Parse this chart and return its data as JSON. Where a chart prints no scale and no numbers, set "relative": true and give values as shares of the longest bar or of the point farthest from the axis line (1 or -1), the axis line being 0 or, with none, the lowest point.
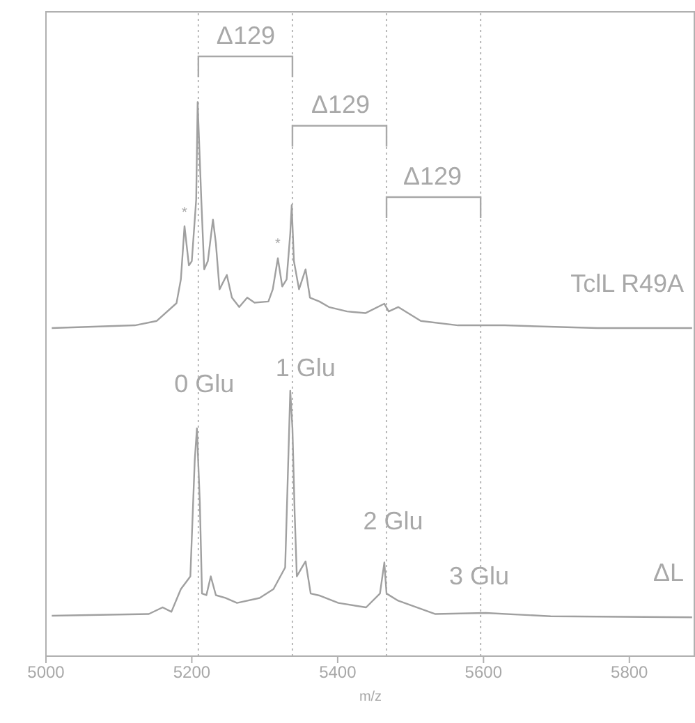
{
  "chart_data": {
    "type": "line",
    "relative": true,
    "xlabel": "m/z",
    "xlim": [
      5000,
      5890
    ],
    "xticks": [
      5000,
      5200,
      5400,
      5600,
      5800
    ],
    "grid": false,
    "legend": false,
    "marker": "none",
    "line_style": "solid",
    "series": [
      {
        "name": "TclL R49A",
        "color": "#a0a0a0",
        "x": [
          5008,
          5122,
          5152,
          5179,
          5185,
          5190,
          5196,
          5200,
          5206,
          5208,
          5213,
          5217,
          5222,
          5229,
          5233,
          5238,
          5248,
          5255,
          5265,
          5276,
          5286,
          5305,
          5311,
          5318,
          5324,
          5330,
          5335,
          5337,
          5340,
          5347,
          5356,
          5362,
          5375,
          5388,
          5413,
          5438,
          5464,
          5470,
          5483,
          5514,
          5565,
          5629,
          5756,
          5886
        ],
        "values": [
          0.592,
          0.597,
          0.605,
          0.637,
          0.68,
          0.776,
          0.705,
          0.713,
          0.824,
          1.0,
          0.824,
          0.698,
          0.713,
          0.788,
          0.745,
          0.662,
          0.688,
          0.647,
          0.63,
          0.647,
          0.638,
          0.64,
          0.662,
          0.718,
          0.667,
          0.68,
          0.763,
          0.814,
          0.713,
          0.662,
          0.698,
          0.647,
          0.64,
          0.63,
          0.622,
          0.619,
          0.636,
          0.622,
          0.63,
          0.605,
          0.597,
          0.597,
          0.592,
          0.592
        ]
      },
      {
        "name": "ΔL",
        "color": "#a0a0a0",
        "x": [
          5008,
          5141,
          5160,
          5172,
          5185,
          5198,
          5204,
          5207,
          5211,
          5214,
          5220,
          5226,
          5233,
          5246,
          5262,
          5293,
          5312,
          5328,
          5331,
          5335,
          5338,
          5341,
          5344,
          5351,
          5356,
          5363,
          5376,
          5401,
          5439,
          5458,
          5464,
          5467,
          5483,
          5534,
          5603,
          5692,
          5886
        ],
        "values": [
          0.073,
          0.076,
          0.088,
          0.08,
          0.121,
          0.144,
          0.353,
          0.411,
          0.277,
          0.113,
          0.11,
          0.144,
          0.11,
          0.105,
          0.096,
          0.105,
          0.121,
          0.16,
          0.295,
          0.479,
          0.411,
          0.26,
          0.144,
          0.16,
          0.171,
          0.113,
          0.109,
          0.096,
          0.088,
          0.113,
          0.169,
          0.113,
          0.1,
          0.076,
          0.078,
          0.072,
          0.07
        ]
      }
    ],
    "ref_lines": [
      {
        "axis": "x",
        "value": 5209,
        "color": "#b8b8b8",
        "line_style": "dotted"
      },
      {
        "axis": "x",
        "value": 5338,
        "color": "#b8b8b8",
        "line_style": "dotted"
      },
      {
        "axis": "x",
        "value": 5467,
        "color": "#b8b8b8",
        "line_style": "dotted"
      },
      {
        "axis": "x",
        "value": 5596,
        "color": "#b8b8b8",
        "line_style": "dotted"
      }
    ],
    "annotations": [
      "Δ129",
      "Δ129",
      "Δ129",
      {
        "text": "0 Glu",
        "x": 5217,
        "y": 0.491
      },
      "1 Glu",
      {
        "text": "2 Glu",
        "x": 5476,
        "y": 0.244
      },
      {
        "text": "3 Glu",
        "x": 5594,
        "y": 0.144
      },
      "*",
      "*"
    ]
  }
}
